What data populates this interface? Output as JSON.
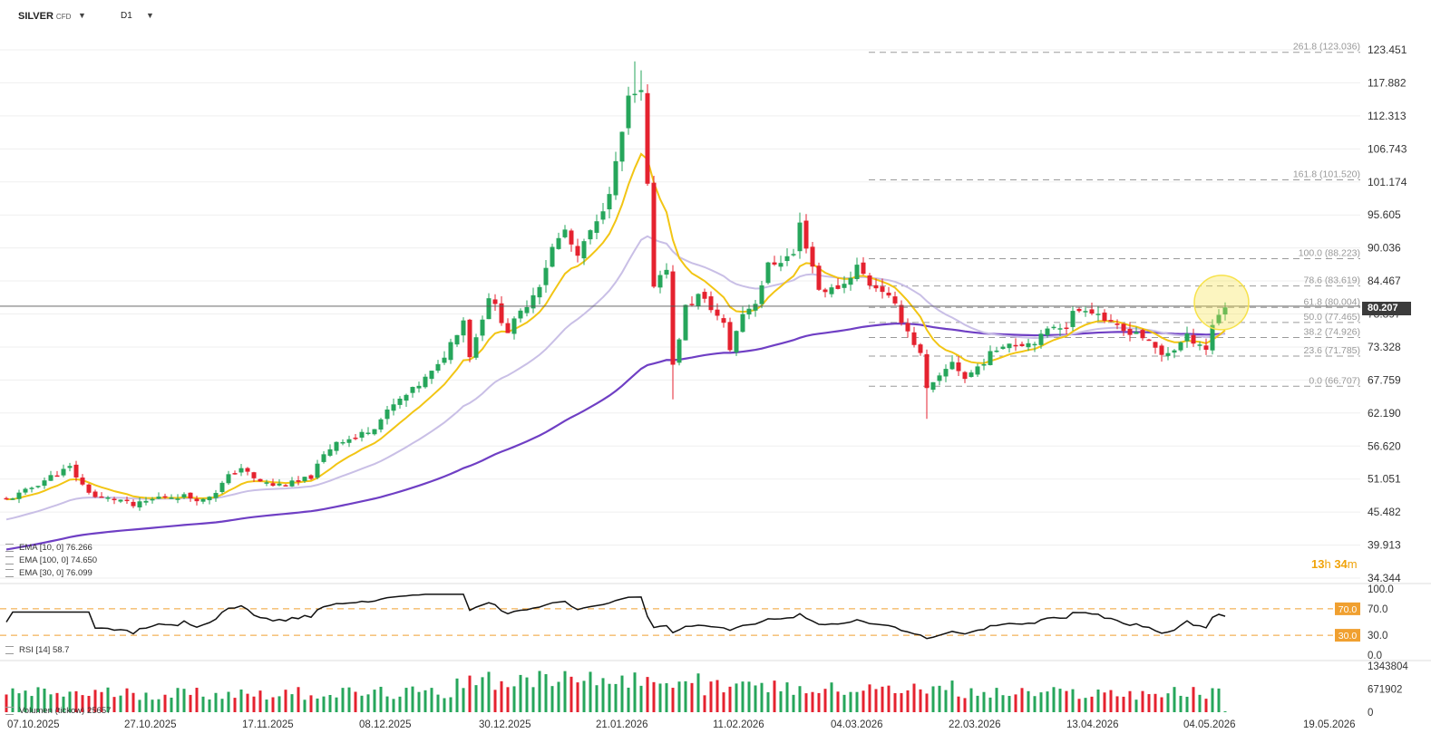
{
  "header": {
    "symbol": "SILVER",
    "instrument_type": "CFD",
    "timeframe": "D1"
  },
  "timer": {
    "hours": "13",
    "minutes": "34",
    "hours_unit": "h",
    "minutes_unit": "m"
  },
  "current_price": "80.207",
  "legend": {
    "ema10": "EMA [10, 0] 76.266",
    "ema100": "EMA [100, 0] 74.650",
    "ema30": "EMA [30, 0] 76.099",
    "rsi": "RSI [14] 58.7",
    "volume": "Volumen (tickow) 25657"
  },
  "colors": {
    "up": "#26a65b",
    "down": "#e5222f",
    "ema10": "#f2c514",
    "ema30": "#c9bfe6",
    "ema100": "#6f3fc4",
    "fib": "#9a9a9a",
    "rsi_line": "#111111",
    "rsi_level": "#f0a030",
    "highlight": "#f7e24a"
  },
  "chart_data": [
    {
      "type": "candlestick",
      "title": "SILVER CFD D1",
      "y_axis_ticks": [
        "123.451",
        "117.882",
        "112.313",
        "106.743",
        "101.174",
        "95.605",
        "90.036",
        "84.467",
        "78.897",
        "73.328",
        "67.759",
        "62.190",
        "56.620",
        "51.051",
        "45.482",
        "39.913",
        "34.344"
      ],
      "ylim": [
        34.344,
        123.451
      ],
      "x_axis_ticks": [
        "07.10.2025",
        "27.10.2025",
        "17.11.2025",
        "08.12.2025",
        "30.12.2025",
        "21.01.2026",
        "11.02.2026",
        "04.03.2026",
        "22.03.2026",
        "13.04.2026",
        "04.05.2026",
        "19.05.2026"
      ],
      "fibonacci": [
        {
          "label": "261.8 (123.036)",
          "value": 123.036
        },
        {
          "label": "161.8 (101.520)",
          "value": 101.52
        },
        {
          "label": "100.0 (88.223)",
          "value": 88.223
        },
        {
          "label": "78.6 (83.619)",
          "value": 83.619
        },
        {
          "label": "61.8 (80.004)",
          "value": 80.004
        },
        {
          "label": "50.0 (77.465)",
          "value": 77.465
        },
        {
          "label": "38.2 (74.926)",
          "value": 74.926
        },
        {
          "label": "23.6 (71.785)",
          "value": 71.785
        },
        {
          "label": "0.0 (66.707)",
          "value": 66.707
        }
      ],
      "anchors": [
        [
          0,
          47.5
        ],
        [
          3,
          49
        ],
        [
          7,
          51.5
        ],
        [
          10,
          53
        ],
        [
          12,
          50
        ],
        [
          14,
          48
        ],
        [
          18,
          47.5
        ],
        [
          20,
          46.5
        ],
        [
          24,
          48
        ],
        [
          28,
          48.2
        ],
        [
          31,
          47.5
        ],
        [
          33,
          49
        ],
        [
          35,
          51.5
        ],
        [
          37,
          53
        ],
        [
          39,
          51
        ],
        [
          42,
          50
        ],
        [
          46,
          50.5
        ],
        [
          48,
          51.5
        ],
        [
          50,
          55
        ],
        [
          52,
          57.5
        ],
        [
          55,
          58
        ],
        [
          58,
          60
        ],
        [
          61,
          63.5
        ],
        [
          64,
          66
        ],
        [
          66,
          68
        ],
        [
          68,
          70
        ],
        [
          70,
          74
        ],
        [
          72,
          78
        ],
        [
          73,
          72
        ],
        [
          74,
          75
        ],
        [
          76,
          82
        ],
        [
          79,
          76
        ],
        [
          81,
          79
        ],
        [
          84,
          84
        ],
        [
          86,
          90
        ],
        [
          88,
          93
        ],
        [
          90,
          88
        ],
        [
          91,
          91
        ],
        [
          93,
          94
        ],
        [
          95,
          100
        ],
        [
          96,
          104
        ],
        [
          98,
          115
        ],
        [
          100,
          116
        ],
        [
          102,
          84
        ],
        [
          104,
          87
        ],
        [
          105,
          70
        ],
        [
          107,
          80
        ],
        [
          109,
          82
        ],
        [
          111,
          80
        ],
        [
          113,
          77
        ],
        [
          114,
          73
        ],
        [
          116,
          79
        ],
        [
          118,
          81
        ],
        [
          120,
          87
        ],
        [
          122,
          88
        ],
        [
          124,
          89
        ],
        [
          125,
          94
        ],
        [
          127,
          87
        ],
        [
          128,
          83
        ],
        [
          130,
          83
        ],
        [
          132,
          84
        ],
        [
          134,
          87
        ],
        [
          136,
          84
        ],
        [
          138,
          83
        ],
        [
          140,
          80
        ],
        [
          141,
          78
        ],
        [
          142,
          76
        ],
        [
          144,
          72
        ],
        [
          145,
          66
        ],
        [
          147,
          68
        ],
        [
          149,
          71
        ],
        [
          151,
          68
        ],
        [
          153,
          70
        ],
        [
          155,
          72
        ],
        [
          157,
          74
        ],
        [
          159,
          74
        ],
        [
          161,
          74
        ],
        [
          163,
          75
        ],
        [
          165,
          77
        ],
        [
          167,
          77
        ],
        [
          168,
          79
        ],
        [
          170,
          80
        ],
        [
          172,
          79
        ],
        [
          174,
          77
        ],
        [
          176,
          76
        ],
        [
          178,
          76
        ],
        [
          180,
          74
        ],
        [
          182,
          72
        ],
        [
          184,
          73
        ],
        [
          186,
          75
        ],
        [
          188,
          74
        ],
        [
          189,
          73
        ],
        [
          190,
          77
        ],
        [
          191,
          79
        ],
        [
          192,
          80.2
        ]
      ],
      "series": [
        {
          "name": "EMA [10, 0]",
          "value": 76.266
        },
        {
          "name": "EMA [100, 0]",
          "value": 74.65
        },
        {
          "name": "EMA [30, 0]",
          "value": 76.099
        }
      ]
    },
    {
      "type": "line",
      "title": "RSI [14]",
      "y_axis_ticks": [
        "100.0",
        "70.0",
        "30.0",
        "0.0"
      ],
      "ylim": [
        0,
        100
      ],
      "levels": [
        "70.0",
        "30.0"
      ],
      "current": 58.7
    },
    {
      "type": "bar",
      "title": "Volumen (tickow)",
      "y_axis_ticks": [
        "1343804",
        "671902",
        "0"
      ],
      "ylim": [
        0,
        1343804
      ],
      "current": 25657
    }
  ]
}
